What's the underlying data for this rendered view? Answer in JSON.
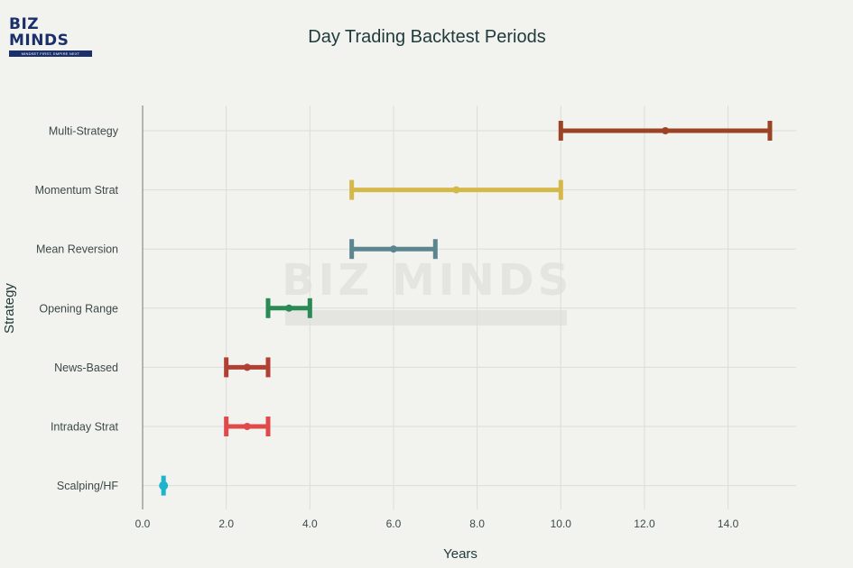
{
  "logo": {
    "text": "BIZ MINDS",
    "tagline": "MINDSET FIRST, EMPIRE NEXT"
  },
  "chart_data": {
    "type": "range",
    "title": "Day Trading Backtest Periods",
    "xlabel": "Years",
    "ylabel": "Strategy",
    "xlim": [
      0,
      15.8
    ],
    "xticks": [
      0,
      2,
      4,
      6,
      8,
      10,
      12,
      14
    ],
    "xtick_labels": [
      "0.0",
      "2.0",
      "4.0",
      "6.0",
      "8.0",
      "10.0",
      "12.0",
      "14.0"
    ],
    "grid": true,
    "legend": "none",
    "series": [
      {
        "category": "Multi-Strategy",
        "min": 10,
        "mid": 12.5,
        "max": 15,
        "color": "#9a4425"
      },
      {
        "category": "Momentum Strat",
        "min": 5,
        "mid": 7.5,
        "max": 10,
        "color": "#d4b84a"
      },
      {
        "category": "Mean Reversion",
        "min": 5,
        "mid": 6,
        "max": 7,
        "color": "#5b8690"
      },
      {
        "category": "Opening Range",
        "min": 3,
        "mid": 3.5,
        "max": 4,
        "color": "#2a8a55"
      },
      {
        "category": "News-Based",
        "min": 2,
        "mid": 2.5,
        "max": 3,
        "color": "#b13f32"
      },
      {
        "category": "Intraday Strat",
        "min": 2,
        "mid": 2.5,
        "max": 3,
        "color": "#e04a4a"
      },
      {
        "category": "Scalping/HF",
        "min": 0.5,
        "mid": 0.5,
        "max": 0.5,
        "color": "#1fb3cc"
      }
    ]
  }
}
